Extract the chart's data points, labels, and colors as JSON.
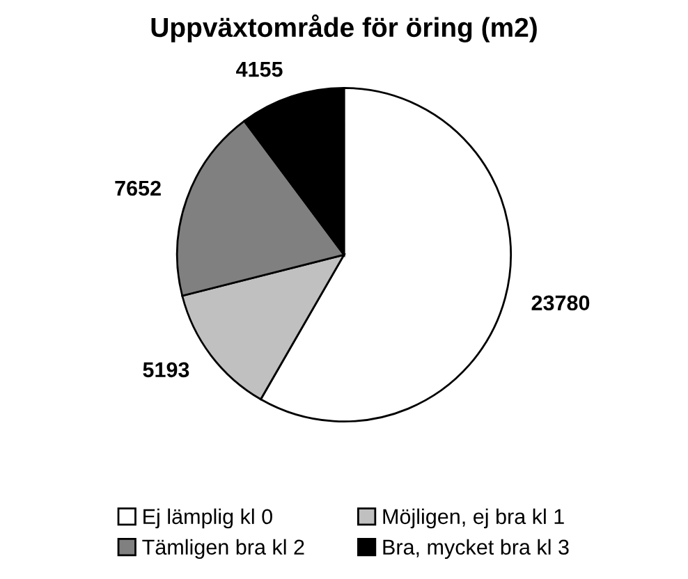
{
  "chart_data": {
    "type": "pie",
    "title": "Uppväxtområde för öring (m2)",
    "categories": [
      "Ej lämplig kl 0",
      "Möjligen, ej bra kl 1",
      "Tämligen bra kl 2",
      "Bra, mycket bra kl 3"
    ],
    "values": [
      23780,
      5193,
      7652,
      4155
    ],
    "colors": [
      "#ffffff",
      "#c0c0c0",
      "#808080",
      "#000000"
    ],
    "data_labels": true,
    "legend": "bottom"
  }
}
